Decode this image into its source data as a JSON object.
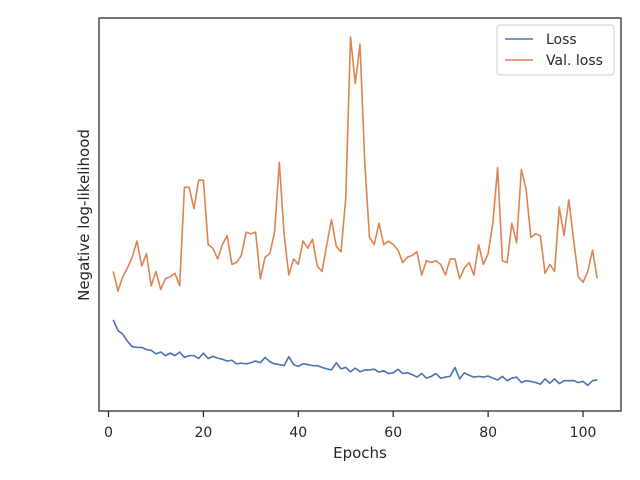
{
  "chart_data": {
    "type": "line",
    "xlabel": "Epochs",
    "ylabel": "Negative log-likelihood",
    "xlim": [
      -2,
      108
    ],
    "ylim": [
      0,
      1
    ],
    "x_ticks": [
      0,
      20,
      40,
      60,
      80,
      100
    ],
    "y_tick_labels_shown": false,
    "legend_position": "top-right",
    "series": [
      {
        "name": "Loss",
        "color": "#4c72b0",
        "x": [
          1,
          2,
          3,
          4,
          5,
          6,
          7,
          8,
          9,
          10,
          11,
          12,
          13,
          14,
          15,
          16,
          17,
          18,
          19,
          20,
          21,
          22,
          23,
          24,
          25,
          26,
          27,
          28,
          29,
          30,
          31,
          32,
          33,
          34,
          35,
          36,
          37,
          38,
          39,
          40,
          41,
          42,
          43,
          44,
          45,
          46,
          47,
          48,
          49,
          50,
          51,
          52,
          53,
          54,
          55,
          56,
          57,
          58,
          59,
          60,
          61,
          62,
          63,
          64,
          65,
          66,
          67,
          68,
          69,
          70,
          71,
          72,
          73,
          74,
          75,
          76,
          77,
          78,
          79,
          80,
          81,
          82,
          83,
          84,
          85,
          86,
          87,
          88,
          89,
          90,
          91,
          92,
          93,
          94,
          95,
          96,
          97,
          98,
          99,
          100,
          101,
          102,
          103
        ],
        "values": [
          0.21,
          0.18,
          0.17,
          0.15,
          0.135,
          0.133,
          0.133,
          0.127,
          0.125,
          0.115,
          0.12,
          0.11,
          0.117,
          0.11,
          0.12,
          0.105,
          0.11,
          0.11,
          0.102,
          0.117,
          0.102,
          0.108,
          0.103,
          0.1,
          0.095,
          0.097,
          0.087,
          0.089,
          0.087,
          0.09,
          0.095,
          0.09,
          0.105,
          0.093,
          0.087,
          0.085,
          0.082,
          0.107,
          0.085,
          0.08,
          0.087,
          0.085,
          0.082,
          0.082,
          0.077,
          0.073,
          0.07,
          0.09,
          0.073,
          0.077,
          0.065,
          0.075,
          0.065,
          0.07,
          0.07,
          0.072,
          0.064,
          0.068,
          0.06,
          0.062,
          0.072,
          0.06,
          0.062,
          0.057,
          0.05,
          0.06,
          0.047,
          0.052,
          0.06,
          0.047,
          0.05,
          0.052,
          0.077,
          0.045,
          0.062,
          0.055,
          0.05,
          0.052,
          0.05,
          0.053,
          0.047,
          0.042,
          0.052,
          0.04,
          0.047,
          0.05,
          0.035,
          0.04,
          0.038,
          0.035,
          0.03,
          0.045,
          0.033,
          0.045,
          0.032,
          0.04,
          0.04,
          0.04,
          0.035,
          0.038,
          0.027,
          0.04,
          0.042
        ]
      },
      {
        "name": "Val. loss",
        "color": "#dd8452",
        "x": [
          1,
          2,
          3,
          4,
          5,
          6,
          7,
          8,
          9,
          10,
          11,
          12,
          13,
          14,
          15,
          16,
          17,
          18,
          19,
          20,
          21,
          22,
          23,
          24,
          25,
          26,
          27,
          28,
          29,
          30,
          31,
          32,
          33,
          34,
          35,
          36,
          37,
          38,
          39,
          40,
          41,
          42,
          43,
          44,
          45,
          46,
          47,
          48,
          49,
          50,
          51,
          52,
          53,
          54,
          55,
          56,
          57,
          58,
          59,
          60,
          61,
          62,
          63,
          64,
          65,
          66,
          67,
          68,
          69,
          70,
          71,
          72,
          73,
          74,
          75,
          76,
          77,
          78,
          79,
          80,
          81,
          82,
          83,
          84,
          85,
          86,
          87,
          88,
          89,
          90,
          91,
          92,
          93,
          94,
          95,
          96,
          97,
          98,
          99,
          100,
          101,
          102,
          103
        ],
        "values": [
          0.345,
          0.29,
          0.33,
          0.355,
          0.385,
          0.43,
          0.36,
          0.395,
          0.305,
          0.345,
          0.295,
          0.325,
          0.33,
          0.34,
          0.305,
          0.58,
          0.58,
          0.52,
          0.6,
          0.6,
          0.42,
          0.41,
          0.38,
          0.42,
          0.445,
          0.365,
          0.37,
          0.39,
          0.455,
          0.45,
          0.455,
          0.325,
          0.385,
          0.395,
          0.455,
          0.65,
          0.45,
          0.335,
          0.38,
          0.365,
          0.43,
          0.41,
          0.435,
          0.36,
          0.345,
          0.42,
          0.49,
          0.415,
          0.4,
          0.55,
          1.0,
          0.87,
          0.98,
          0.65,
          0.44,
          0.42,
          0.48,
          0.42,
          0.43,
          0.42,
          0.405,
          0.37,
          0.385,
          0.39,
          0.4,
          0.335,
          0.375,
          0.37,
          0.375,
          0.365,
          0.335,
          0.38,
          0.38,
          0.325,
          0.355,
          0.37,
          0.335,
          0.42,
          0.365,
          0.395,
          0.48,
          0.635,
          0.375,
          0.37,
          0.48,
          0.425,
          0.63,
          0.575,
          0.44,
          0.45,
          0.445,
          0.34,
          0.365,
          0.345,
          0.525,
          0.445,
          0.545,
          0.435,
          0.33,
          0.315,
          0.345,
          0.405,
          0.325
        ]
      }
    ]
  }
}
